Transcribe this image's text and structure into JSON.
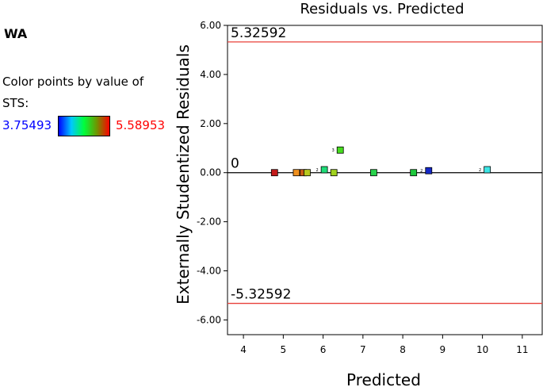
{
  "sidebar": {
    "title": "WA",
    "legend_caption": "Color points by value of STS:",
    "color_min": "3.75493",
    "color_max": "5.58953",
    "color_min_color": "#0000ff",
    "color_max_color": "#ff0000"
  },
  "chart_data": {
    "type": "scatter",
    "title": "Residuals vs. Predicted",
    "xlabel": "Predicted",
    "ylabel": "Externally Studentized Residuals",
    "xlim": [
      3.6,
      11.5
    ],
    "ylim": [
      -6.6,
      6.0
    ],
    "xticks": [
      4,
      5,
      6,
      7,
      8,
      9,
      10,
      11
    ],
    "yticks": [
      6.0,
      4.0,
      2.0,
      0.0,
      -2.0,
      -4.0,
      -6.0
    ],
    "ytick_labels": [
      "6.00",
      "4.00",
      "2.00",
      "0.00",
      "-2.00",
      "-4.00",
      "-6.00"
    ],
    "grid": false,
    "reference_lines": [
      {
        "y": 5.32592,
        "label": "5.32592",
        "color": "#e8403a"
      },
      {
        "y": -5.32592,
        "label": "-5.32592",
        "color": "#e8403a"
      },
      {
        "y": 0,
        "label": "0",
        "color": "#000000"
      }
    ],
    "points": [
      {
        "x": 4.78,
        "y": 0.0,
        "color": "#c41a1a"
      },
      {
        "x": 5.33,
        "y": 0.0,
        "color": "#f0901e"
      },
      {
        "x": 5.5,
        "y": 0.0,
        "color": "#c85a14"
      },
      {
        "x": 5.6,
        "y": 0.0,
        "color": "#b8c81e"
      },
      {
        "x": 6.03,
        "y": 0.12,
        "color": "#1edc78",
        "label": "2"
      },
      {
        "x": 6.27,
        "y": 0.0,
        "color": "#a0d21e"
      },
      {
        "x": 6.43,
        "y": 0.92,
        "color": "#46dc1e",
        "label": "3"
      },
      {
        "x": 7.27,
        "y": 0.0,
        "color": "#28d24b"
      },
      {
        "x": 8.27,
        "y": 0.0,
        "color": "#1ec83c"
      },
      {
        "x": 8.65,
        "y": 0.08,
        "color": "#1428c8",
        "label": "2"
      },
      {
        "x": 10.12,
        "y": 0.12,
        "color": "#3ce6e6",
        "label": "2"
      }
    ]
  }
}
